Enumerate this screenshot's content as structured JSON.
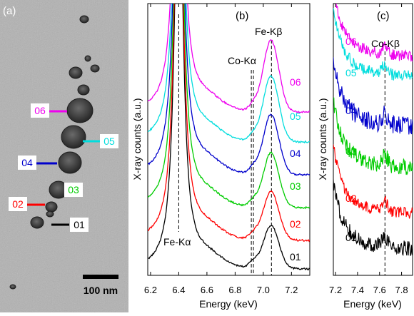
{
  "panel_a": {
    "label": "(a)",
    "scale_bar": "100 nm",
    "particle_labels": [
      {
        "text": "01",
        "color": "#000000"
      },
      {
        "text": "02",
        "color": "#ff0000"
      },
      {
        "text": "03",
        "color": "#00cc00"
      },
      {
        "text": "04",
        "color": "#0000cc"
      },
      {
        "text": "05",
        "color": "#00dddd"
      },
      {
        "text": "06",
        "color": "#ee00ee"
      }
    ]
  },
  "chart_data": [
    {
      "type": "line",
      "panel_label": "(b)",
      "xlabel": "Energy (keV)",
      "ylabel": "X-ray counts (a.u.)",
      "xlim": [
        6.18,
        7.33
      ],
      "x_ticks": [
        "6.2",
        "6.4",
        "6.6",
        "6.8",
        "7.0",
        "7.2"
      ],
      "annotations": [
        "Fe-Kα",
        "Co-Kα",
        "Fe-Kβ"
      ],
      "reference_lines_keV": [
        6.4,
        6.915,
        6.93,
        7.058
      ],
      "series": [
        {
          "name": "01",
          "color": "#000000",
          "offset": 0
        },
        {
          "name": "02",
          "color": "#ff0000",
          "offset": 1
        },
        {
          "name": "03",
          "color": "#00cc00",
          "offset": 2
        },
        {
          "name": "04",
          "color": "#0000cc",
          "offset": 3
        },
        {
          "name": "05",
          "color": "#00dddd",
          "offset": 4
        },
        {
          "name": "06",
          "color": "#ee00ee",
          "offset": 5
        }
      ]
    },
    {
      "type": "line",
      "panel_label": "(c)",
      "xlabel": "Energy (keV)",
      "ylabel": "X-ray counts (a.u.)",
      "xlim": [
        7.18,
        7.9
      ],
      "x_ticks": [
        "7.2",
        "7.4",
        "7.6",
        "7.8"
      ],
      "annotations": [
        "Co-Kβ"
      ],
      "reference_lines_keV": [
        7.649
      ],
      "series": [
        {
          "name": "01",
          "color": "#000000",
          "offset": 0
        },
        {
          "name": "02",
          "color": "#ff0000",
          "offset": 1
        },
        {
          "name": "03",
          "color": "#00cc00",
          "offset": 2
        },
        {
          "name": "04",
          "color": "#0000cc",
          "offset": 3
        },
        {
          "name": "05",
          "color": "#00dddd",
          "offset": 4
        },
        {
          "name": "06",
          "color": "#ee00ee",
          "offset": 5
        }
      ]
    }
  ]
}
